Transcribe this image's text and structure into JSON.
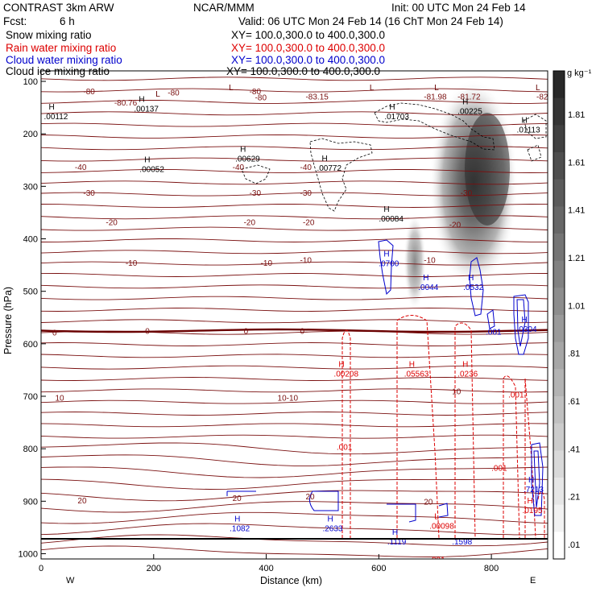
{
  "header": {
    "model": "CONTRAST   3km ARW",
    "org": "NCAR/MMM",
    "init": "Init: 00 UTC Mon 24 Feb 14",
    "fcst_label": "Fcst:",
    "fcst_value": "6 h",
    "valid": "Valid: 06 UTC Mon 24 Feb 14 (16 ChT Mon 24 Feb 14)"
  },
  "fields": [
    {
      "name": "Snow mixing ratio",
      "xy": "XY= 100.0,300.0 to 400.0,300.0",
      "color": "#000000"
    },
    {
      "name": "Rain water mixing ratio",
      "xy": "XY= 100.0,300.0 to 400.0,300.0",
      "color": "#dd0000"
    },
    {
      "name": "Cloud water mixing ratio",
      "xy": "XY= 100.0,300.0 to 400.0,300.0",
      "color": "#0000cc"
    },
    {
      "name": "Cloud ice mixing ratio",
      "xy": "XY= 100.0,300.0 to 400.0,300.0",
      "color": "#000000"
    }
  ],
  "colorbar": {
    "unit": "g kg⁻¹",
    "labels": [
      "1.81",
      "1.61",
      "1.41",
      "1.21",
      "1.01",
      ".81",
      ".61",
      ".41",
      ".21",
      ".01"
    ]
  },
  "chart_data": {
    "type": "contour_cross_section",
    "xlabel": "Distance (km)",
    "ylabel": "Pressure (hPa)",
    "xlim": [
      0,
      900
    ],
    "ylim": [
      1010,
      80
    ],
    "xticks": [
      0,
      200,
      400,
      600,
      800
    ],
    "xtick_labels": [
      "0",
      "200",
      "400",
      "600",
      "800"
    ],
    "yticks": [
      100,
      200,
      300,
      400,
      500,
      600,
      700,
      800,
      900,
      1000
    ],
    "ytick_labels": [
      "100",
      "200",
      "300",
      "400",
      "500",
      "600",
      "700",
      "800",
      "900",
      "1000"
    ],
    "west_label": "W",
    "east_label": "E",
    "temperature_labels": [
      {
        "x": 75,
        "p": 118,
        "text": "-80"
      },
      {
        "x": 225,
        "p": 121,
        "text": "-80"
      },
      {
        "x": 370,
        "p": 118,
        "text": "-80"
      },
      {
        "x": 380,
        "p": 130,
        "text": "-80"
      },
      {
        "x": 130,
        "p": 140,
        "text": "-80.76"
      },
      {
        "x": 470,
        "p": 128,
        "text": "-83.15"
      },
      {
        "x": 680,
        "p": 128,
        "text": "-81.98"
      },
      {
        "x": 740,
        "p": 128,
        "text": "-81.72"
      },
      {
        "x": 880,
        "p": 128,
        "text": "-82"
      },
      {
        "x": 60,
        "p": 263,
        "text": "-40"
      },
      {
        "x": 340,
        "p": 263,
        "text": "-40"
      },
      {
        "x": 460,
        "p": 263,
        "text": "-40"
      },
      {
        "x": 75,
        "p": 312,
        "text": "-30"
      },
      {
        "x": 370,
        "p": 312,
        "text": "-30"
      },
      {
        "x": 460,
        "p": 312,
        "text": "-30"
      },
      {
        "x": 745,
        "p": 312,
        "text": "-30"
      },
      {
        "x": 115,
        "p": 368,
        "text": "-20"
      },
      {
        "x": 360,
        "p": 368,
        "text": "-20"
      },
      {
        "x": 465,
        "p": 368,
        "text": "-20"
      },
      {
        "x": 725,
        "p": 372,
        "text": "-20"
      },
      {
        "x": 150,
        "p": 445,
        "text": "-10"
      },
      {
        "x": 390,
        "p": 445,
        "text": "-10"
      },
      {
        "x": 460,
        "p": 440,
        "text": "-10"
      },
      {
        "x": 680,
        "p": 440,
        "text": "-10"
      },
      {
        "x": 20,
        "p": 578,
        "text": "0"
      },
      {
        "x": 185,
        "p": 575,
        "text": "0"
      },
      {
        "x": 360,
        "p": 575,
        "text": "0"
      },
      {
        "x": 460,
        "p": 575,
        "text": "0"
      },
      {
        "x": 25,
        "p": 702,
        "text": "10"
      },
      {
        "x": 420,
        "p": 702,
        "text": "10-10"
      },
      {
        "x": 730,
        "p": 690,
        "text": "10"
      },
      {
        "x": 65,
        "p": 898,
        "text": "20"
      },
      {
        "x": 340,
        "p": 893,
        "text": "20"
      },
      {
        "x": 470,
        "p": 890,
        "text": "20"
      },
      {
        "x": 680,
        "p": 900,
        "text": "20"
      }
    ],
    "extrema_markers": [
      {
        "x": 195,
        "p": 135,
        "mark": "L",
        "value": "",
        "color": "#660000"
      },
      {
        "x": 325,
        "p": 123,
        "mark": "L",
        "value": "",
        "color": "#660000"
      },
      {
        "x": 575,
        "p": 123,
        "mark": "L",
        "value": "",
        "color": "#660000"
      },
      {
        "x": 690,
        "p": 123,
        "mark": "L",
        "value": "",
        "color": "#660000"
      },
      {
        "x": 870,
        "p": 123,
        "mark": "L",
        "value": "",
        "color": "#660000"
      },
      {
        "x": 5,
        "p": 160,
        "mark": "H",
        "value": ".00112",
        "color": "#000000"
      },
      {
        "x": 165,
        "p": 145,
        "mark": "H",
        "value": ".00137",
        "color": "#000000"
      },
      {
        "x": 610,
        "p": 160,
        "mark": "H",
        "value": ".01703",
        "color": "#000000"
      },
      {
        "x": 740,
        "p": 150,
        "mark": "H",
        "value": ".00225",
        "color": "#000000"
      },
      {
        "x": 845,
        "p": 185,
        "mark": "H",
        "value": ".01113",
        "color": "#000000"
      },
      {
        "x": 175,
        "p": 260,
        "mark": "H",
        "value": ".00052",
        "color": "#000000"
      },
      {
        "x": 345,
        "p": 240,
        "mark": "H",
        "value": ".00629",
        "color": "#000000"
      },
      {
        "x": 490,
        "p": 258,
        "mark": "H",
        "value": ".00772",
        "color": "#000000"
      },
      {
        "x": 600,
        "p": 355,
        "mark": "H",
        "value": ".00084",
        "color": "#000000"
      },
      {
        "x": 600,
        "p": 440,
        "mark": "H",
        "value": ".0700",
        "color": "#0000cc"
      },
      {
        "x": 670,
        "p": 485,
        "mark": "H",
        "value": ".0044",
        "color": "#0000cc"
      },
      {
        "x": 750,
        "p": 485,
        "mark": "H",
        "value": ".0532",
        "color": "#0000cc"
      },
      {
        "x": 790,
        "p": 570,
        "mark": "",
        "value": ".001",
        "color": "#0000cc"
      },
      {
        "x": 845,
        "p": 565,
        "mark": "H",
        "value": ".0304",
        "color": "#0000cc"
      },
      {
        "x": 520,
        "p": 650,
        "mark": "H",
        "value": ".00208",
        "color": "#dd0000"
      },
      {
        "x": 645,
        "p": 650,
        "mark": "H",
        "value": ".05563",
        "color": "#dd0000"
      },
      {
        "x": 740,
        "p": 650,
        "mark": "H",
        "value": ".0236",
        "color": "#dd0000"
      },
      {
        "x": 830,
        "p": 690,
        "mark": "",
        "value": ".001",
        "color": "#dd0000"
      },
      {
        "x": 525,
        "p": 790,
        "mark": "",
        "value": ".001",
        "color": "#dd0000"
      },
      {
        "x": 800,
        "p": 830,
        "mark": "",
        "value": ".001",
        "color": "#dd0000"
      },
      {
        "x": 857,
        "p": 870,
        "mark": "H",
        "value": ".7213",
        "color": "#0000cc"
      },
      {
        "x": 855,
        "p": 910,
        "mark": "H",
        "value": ".0195",
        "color": "#dd0000"
      },
      {
        "x": 690,
        "p": 940,
        "mark": "L",
        "value": ".00098",
        "color": "#dd0000"
      },
      {
        "x": 335,
        "p": 945,
        "mark": "H",
        "value": ".1082",
        "color": "#0000cc"
      },
      {
        "x": 500,
        "p": 945,
        "mark": "H",
        "value": ".2633",
        "color": "#0000cc"
      },
      {
        "x": 615,
        "p": 970,
        "mark": "H",
        "value": ".1119",
        "color": "#0000cc"
      },
      {
        "x": 730,
        "p": 970,
        "mark": "",
        "value": ".1598",
        "color": "#0000cc"
      },
      {
        "x": 690,
        "p": 1005,
        "mark": "",
        "value": ".001",
        "color": "#dd0000"
      }
    ],
    "isotherm_levels": [
      -80,
      -40,
      -30,
      -20,
      -10,
      0,
      10,
      20
    ],
    "snow_shading_max_g_per_kg": 1.81
  },
  "colors": {
    "isotherm": "#7a1010",
    "rain": "#dd0000",
    "cloud_water": "#0000cc",
    "cloud_ice": "#000000"
  }
}
